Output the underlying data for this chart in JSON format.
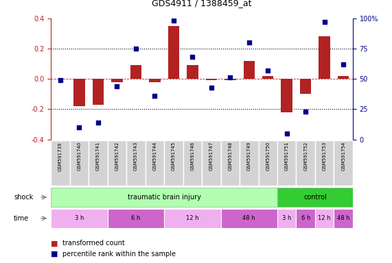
{
  "title": "GDS4911 / 1388459_at",
  "samples": [
    "GSM591739",
    "GSM591740",
    "GSM591741",
    "GSM591742",
    "GSM591743",
    "GSM591744",
    "GSM591745",
    "GSM591746",
    "GSM591747",
    "GSM591748",
    "GSM591749",
    "GSM591750",
    "GSM591751",
    "GSM591752",
    "GSM591753",
    "GSM591754"
  ],
  "red_values": [
    0.0,
    -0.18,
    -0.17,
    -0.02,
    0.09,
    -0.02,
    0.35,
    0.09,
    -0.01,
    -0.01,
    0.12,
    0.02,
    -0.22,
    -0.1,
    0.28,
    0.02
  ],
  "blue_values_pct": [
    49,
    10,
    14,
    44,
    75,
    36,
    98,
    68,
    43,
    51,
    80,
    57,
    5,
    23,
    97,
    62
  ],
  "ylim_left": [
    -0.4,
    0.4
  ],
  "ylim_right": [
    0,
    100
  ],
  "yticks_left": [
    -0.4,
    -0.2,
    0.0,
    0.2,
    0.4
  ],
  "yticks_right": [
    0,
    25,
    50,
    75,
    100
  ],
  "ytick_labels_right": [
    "0",
    "25",
    "50",
    "75",
    "100%"
  ],
  "red_color": "#b22222",
  "blue_color": "#00008b",
  "tbi_color": "#b2ffb2",
  "control_color": "#33cc33",
  "time_color_light": "#f0b0f0",
  "time_color_dark": "#cc66cc",
  "sample_box_color": "#d3d3d3",
  "legend_items": [
    {
      "label": "transformed count",
      "color": "#b22222"
    },
    {
      "label": "percentile rank within the sample",
      "color": "#00008b"
    }
  ]
}
